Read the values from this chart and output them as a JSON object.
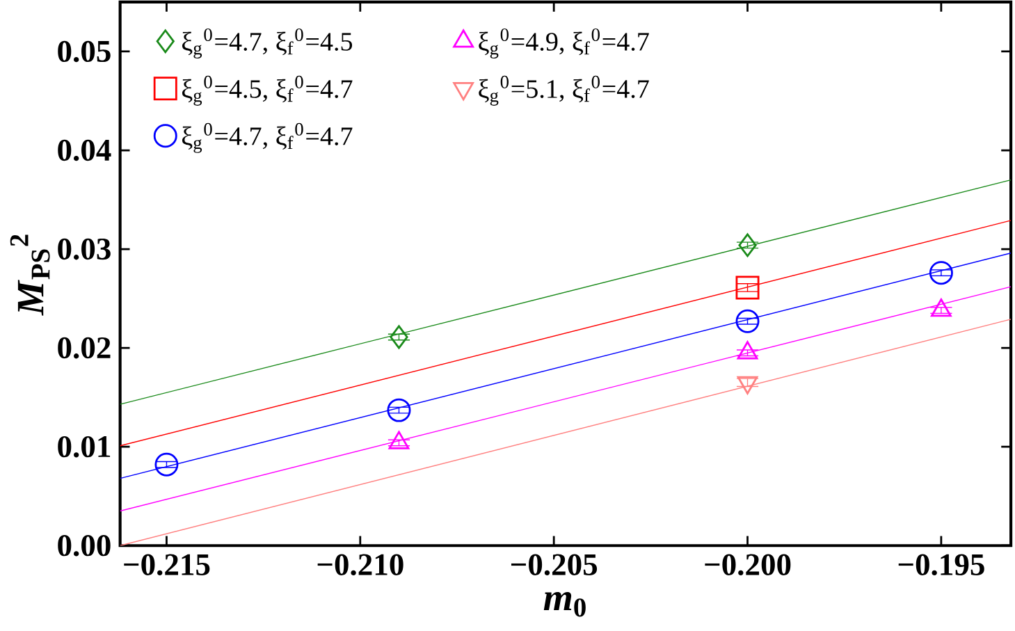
{
  "chart_data": {
    "type": "scatter",
    "xlabel": "*m*$_{0}$",
    "ylabel": "*M*$_{PS}$$^{2}$",
    "xlim": [
      -0.2162,
      -0.1932
    ],
    "ylim": [
      0,
      0.055
    ],
    "xticks": [
      {
        "value": -0.215,
        "label": "−0.215"
      },
      {
        "value": -0.21,
        "label": "−0.210"
      },
      {
        "value": -0.205,
        "label": "−0.205"
      },
      {
        "value": -0.2,
        "label": "−0.200"
      },
      {
        "value": -0.195,
        "label": "−0.195"
      }
    ],
    "yticks": [
      {
        "value": 0,
        "label": "0.00"
      },
      {
        "value": 0.01,
        "label": "0.01"
      },
      {
        "value": 0.02,
        "label": "0.02"
      },
      {
        "value": 0.03,
        "label": "0.03"
      },
      {
        "value": 0.04,
        "label": "0.04"
      },
      {
        "value": 0.05,
        "label": "0.05"
      }
    ],
    "grid": false,
    "legend": "top left",
    "series": [
      {
        "type": "line",
        "color": "#1a8a1a",
        "marker": "none",
        "x": [
          -0.2162,
          -0.1932
        ],
        "values": [
          0.0143,
          0.037
        ]
      },
      {
        "type": "line",
        "color": "#ff0000",
        "marker": "none",
        "x": [
          -0.2162,
          -0.1932
        ],
        "values": [
          0.0101,
          0.0329
        ]
      },
      {
        "type": "line",
        "color": "#0000ff",
        "marker": "none",
        "x": [
          -0.2162,
          -0.1932
        ],
        "values": [
          0.0068,
          0.0296
        ]
      },
      {
        "type": "line",
        "color": "#ff00ff",
        "marker": "none",
        "x": [
          -0.2162,
          -0.1932
        ],
        "values": [
          0.0035,
          0.0262
        ]
      },
      {
        "type": "line",
        "color": "#ff8080",
        "marker": "none",
        "x": [
          -0.2162,
          -0.1932
        ],
        "values": [
          0.0,
          0.0229
        ]
      },
      {
        "name": "ξ$_{g}$$^{0}$=4.7, ξ$_{f}$$^{0}$=4.5",
        "color": "#1a8a1a",
        "marker": "diamond",
        "x": [
          -0.209,
          -0.2
        ],
        "values": [
          0.0211,
          0.0304
        ],
        "errors": [
          0.0003,
          0.0003
        ]
      },
      {
        "name": "ξ$_{g}$$^{0}$=4.5, ξ$_{f}$$^{0}$=4.7",
        "color": "#ff0000",
        "marker": "square",
        "x": [
          -0.2
        ],
        "values": [
          0.0261
        ],
        "errors": [
          0.0004
        ]
      },
      {
        "name": "ξ$_{g}$$^{0}$=4.7, ξ$_{f}$$^{0}$=4.7",
        "color": "#0000ff",
        "marker": "circle",
        "x": [
          -0.215,
          -0.209,
          -0.2,
          -0.195
        ],
        "values": [
          0.0082,
          0.0137,
          0.0227,
          0.0276
        ],
        "errors": [
          0.0003,
          0.0003,
          0.0003,
          0.0003
        ]
      },
      {
        "name": "ξ$_{g}$$^{0}$=4.9, ξ$_{f}$$^{0}$=4.7",
        "color": "#ff00ff",
        "marker": "triangle",
        "x": [
          -0.209,
          -0.2,
          -0.195
        ],
        "values": [
          0.0104,
          0.0195,
          0.0238
        ],
        "errors": [
          0.0003,
          0.0003,
          0.0003
        ]
      },
      {
        "name": "ξ$_{g}$$^{0}$=5.1, ξ$_{f}$$^{0}$=4.7",
        "color": "#ff8080",
        "marker": "triangle-down",
        "x": [
          -0.2
        ],
        "values": [
          0.0165
        ],
        "errors": [
          0.0004
        ]
      }
    ]
  }
}
